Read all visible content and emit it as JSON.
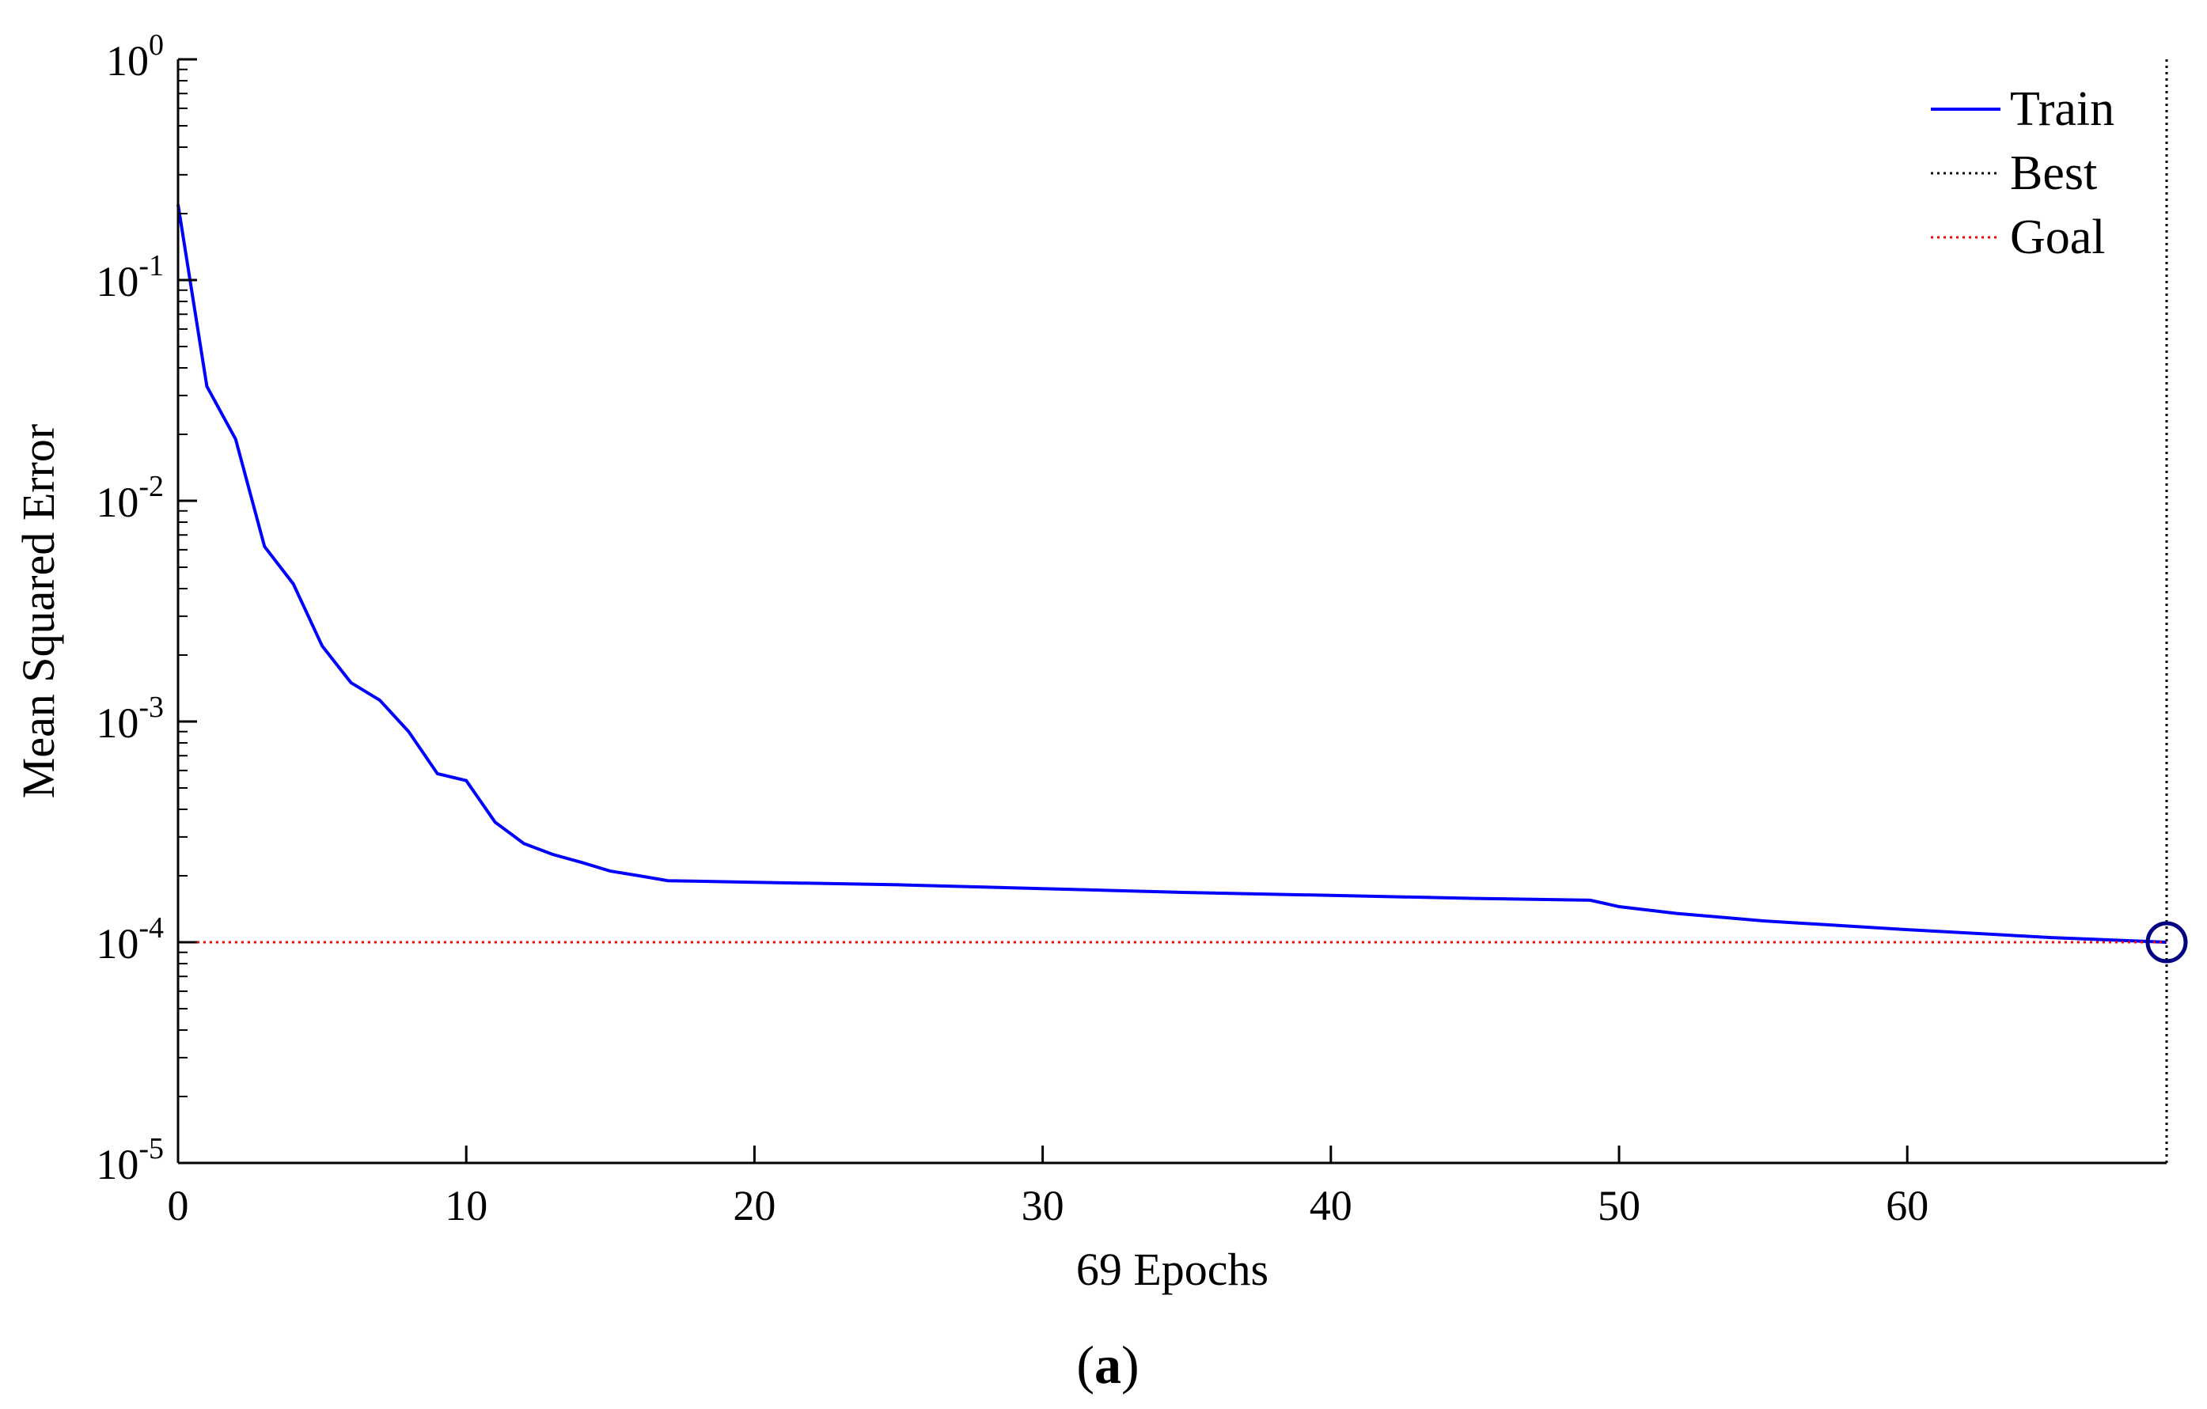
{
  "chart_data": {
    "type": "line",
    "title": "",
    "xlabel": "69 Epochs",
    "ylabel": "Mean Squared Error",
    "panel_label": {
      "open": "(",
      "letter": "a",
      "close": ")"
    },
    "yscale": "log",
    "xlim": [
      0,
      69
    ],
    "ylim": [
      1e-05,
      1
    ],
    "xticks": [
      0,
      10,
      20,
      30,
      40,
      50,
      60
    ],
    "yticks": [
      {
        "value": 1,
        "base": "10",
        "exp": "0"
      },
      {
        "value": 0.1,
        "base": "10",
        "exp": "-1"
      },
      {
        "value": 0.01,
        "base": "10",
        "exp": "-2"
      },
      {
        "value": 0.001,
        "base": "10",
        "exp": "-3"
      },
      {
        "value": 0.0001,
        "base": "10",
        "exp": "-4"
      },
      {
        "value": 1e-05,
        "base": "10",
        "exp": "-5"
      }
    ],
    "grid": false,
    "legend_position": "top-right",
    "series": [
      {
        "name": "Train",
        "color": "#0000ff",
        "style": "solid",
        "x": [
          0,
          1,
          2,
          3,
          4,
          5,
          6,
          7,
          8,
          9,
          10,
          11,
          12,
          13,
          14,
          15,
          16,
          17,
          20,
          25,
          30,
          35,
          40,
          45,
          49,
          50,
          52,
          55,
          60,
          65,
          69
        ],
        "y": [
          0.22,
          0.033,
          0.019,
          0.0062,
          0.0042,
          0.0022,
          0.0015,
          0.00125,
          0.0009,
          0.00058,
          0.00054,
          0.00035,
          0.00028,
          0.00025,
          0.00023,
          0.00021,
          0.0002,
          0.00019,
          0.000187,
          0.000182,
          0.000175,
          0.000168,
          0.000163,
          0.000158,
          0.000155,
          0.000145,
          0.000135,
          0.000125,
          0.000114,
          0.000105,
          0.0001
        ]
      },
      {
        "name": "Best",
        "color": "#000000",
        "style": "dotted",
        "x": [
          69,
          69
        ],
        "y": [
          1e-05,
          1
        ]
      },
      {
        "name": "Goal",
        "color": "#ff0000",
        "style": "dotted",
        "x": [
          0,
          69
        ],
        "y": [
          0.0001,
          0.0001
        ]
      }
    ],
    "markers": [
      {
        "x": 69,
        "y": 0.0001,
        "shape": "circle",
        "color": "#000080"
      }
    ]
  }
}
